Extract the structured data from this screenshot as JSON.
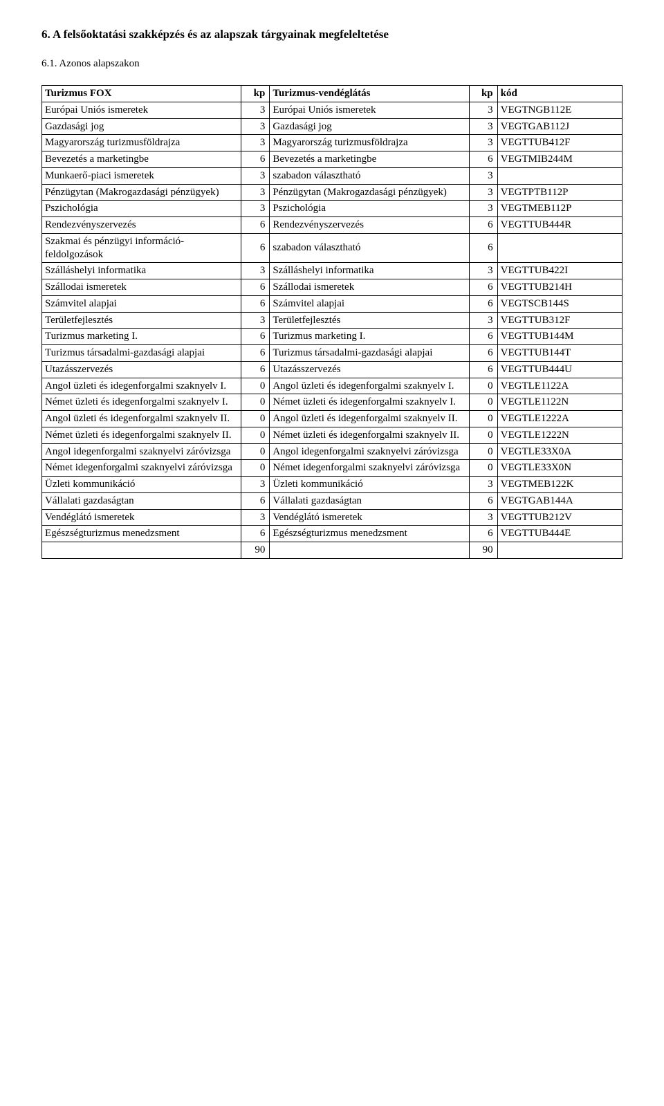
{
  "headings": {
    "section": "6. A felsőoktatási szakképzés és az alapszak tárgyainak megfeleltetése",
    "sub": "6.1. Azonos alapszakon"
  },
  "table": {
    "header": {
      "leftName": "Turizmus FOX",
      "kp1": "kp",
      "rightName": "Turizmus-vendéglátás",
      "kp2": "kp",
      "code": "kód"
    },
    "rows": [
      {
        "l": "Európai Uniós ismeretek",
        "k1": "3",
        "r": "Európai Uniós ismeretek",
        "k2": "3",
        "c": "VEGTNGB112E"
      },
      {
        "l": "Gazdasági jog",
        "k1": "3",
        "r": "Gazdasági jog",
        "k2": "3",
        "c": "VEGTGAB112J"
      },
      {
        "l": "Magyarország turizmusföldrajza",
        "k1": "3",
        "r": "Magyarország turizmusföldrajza",
        "k2": "3",
        "c": "VEGTTUB412F"
      },
      {
        "l": "Bevezetés a marketingbe",
        "k1": "6",
        "r": "Bevezetés a marketingbe",
        "k2": "6",
        "c": "VEGTMIB244M"
      },
      {
        "l": "Munkaerő-piaci ismeretek",
        "k1": "3",
        "r": "szabadon választható",
        "k2": "3",
        "c": ""
      },
      {
        "l": "Pénzügytan (Makrogazdasági pénzügyek)",
        "k1": "3",
        "r": "Pénzügytan (Makrogazdasági pénzügyek)",
        "k2": "3",
        "c": "VEGTPTB112P"
      },
      {
        "l": "Pszichológia",
        "k1": "3",
        "r": "Pszichológia",
        "k2": "3",
        "c": "VEGTMEB112P"
      },
      {
        "l": "Rendezvényszervezés",
        "k1": "6",
        "r": "Rendezvényszervezés",
        "k2": "6",
        "c": "VEGTTUB444R"
      },
      {
        "l": "Szakmai és pénzügyi információ-feldolgozások",
        "k1": "6",
        "r": "szabadon választható",
        "k2": "6",
        "c": ""
      },
      {
        "l": "Szálláshelyi informatika",
        "k1": "3",
        "r": "Szálláshelyi informatika",
        "k2": "3",
        "c": "VEGTTUB422I"
      },
      {
        "l": "Szállodai ismeretek",
        "k1": "6",
        "r": "Szállodai ismeretek",
        "k2": "6",
        "c": "VEGTTUB214H"
      },
      {
        "l": "Számvitel alapjai",
        "k1": "6",
        "r": "Számvitel alapjai",
        "k2": "6",
        "c": "VEGTSCB144S"
      },
      {
        "l": "Területfejlesztés",
        "k1": "3",
        "r": "Területfejlesztés",
        "k2": "3",
        "c": "VEGTTUB312F"
      },
      {
        "l": "Turizmus marketing I.",
        "k1": "6",
        "r": "Turizmus marketing I.",
        "k2": "6",
        "c": "VEGTTUB144M"
      },
      {
        "l": "Turizmus társadalmi-gazdasági alapjai",
        "k1": "6",
        "r": "Turizmus társadalmi-gazdasági alapjai",
        "k2": "6",
        "c": "VEGTTUB144T"
      },
      {
        "l": "Utazásszervezés",
        "k1": "6",
        "r": "Utazásszervezés",
        "k2": "6",
        "c": "VEGTTUB444U"
      },
      {
        "l": "Angol üzleti és idegenforgalmi szaknyelv I.",
        "k1": "0",
        "r": "Angol üzleti és idegenforgalmi szaknyelv I.",
        "k2": "0",
        "c": "VEGTLE1122A"
      },
      {
        "l": "Német üzleti és idegenforgalmi szaknyelv I.",
        "k1": "0",
        "r": "Német üzleti és idegenforgalmi szaknyelv I.",
        "k2": "0",
        "c": "VEGTLE1122N"
      },
      {
        "l": "Angol üzleti és idegenforgalmi szaknyelv II.",
        "k1": "0",
        "r": "Angol üzleti és idegenforgalmi szaknyelv II.",
        "k2": "0",
        "c": "VEGTLE1222A"
      },
      {
        "l": "Német üzleti és idegenforgalmi szaknyelv II.",
        "k1": "0",
        "r": "Német üzleti és idegenforgalmi szaknyelv II.",
        "k2": "0",
        "c": "VEGTLE1222N"
      },
      {
        "l": "Angol idegenforgalmi szaknyelvi záróvizsga",
        "k1": "0",
        "r": "Angol idegenforgalmi szaknyelvi záróvizsga",
        "k2": "0",
        "c": "VEGTLE33X0A"
      },
      {
        "l": "Német idegenforgalmi szaknyelvi záróvizsga",
        "k1": "0",
        "r": "Német idegenforgalmi szaknyelvi záróvizsga",
        "k2": "0",
        "c": "VEGTLE33X0N"
      },
      {
        "l": "Üzleti kommunikáció",
        "k1": "3",
        "r": "Üzleti kommunikáció",
        "k2": "3",
        "c": "VEGTMEB122K"
      },
      {
        "l": "Vállalati gazdaságtan",
        "k1": "6",
        "r": "Vállalati gazdaságtan",
        "k2": "6",
        "c": "VEGTGAB144A"
      },
      {
        "l": "Vendéglátó ismeretek",
        "k1": "3",
        "r": "Vendéglátó ismeretek",
        "k2": "3",
        "c": "VEGTTUB212V"
      },
      {
        "l": "Egészségturizmus menedzsment",
        "k1": "6",
        "r": "Egészségturizmus menedzsment",
        "k2": "6",
        "c": "VEGTTUB444E"
      }
    ],
    "sum": {
      "k1": "90",
      "k2": "90"
    }
  }
}
